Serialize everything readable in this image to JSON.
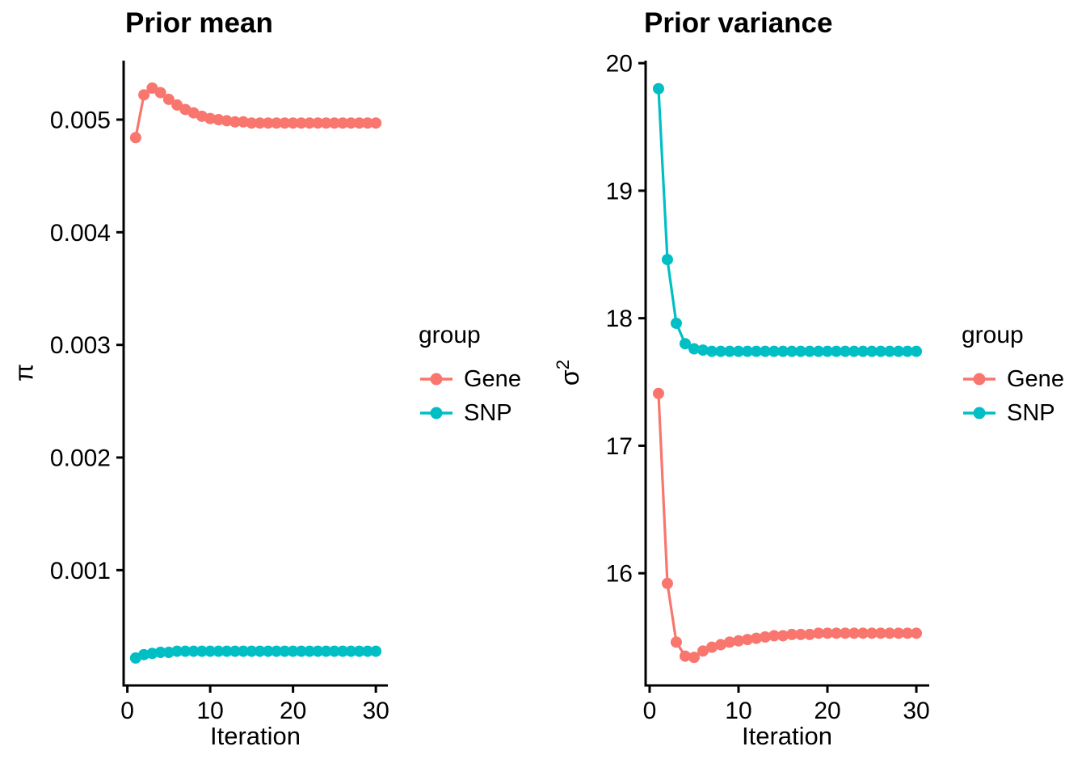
{
  "colors": {
    "gene": "#F8766D",
    "snp": "#00BFC4",
    "axis": "#000000",
    "text": "#000000",
    "background": "#FFFFFF"
  },
  "chart_data": [
    {
      "type": "line",
      "title": "Prior mean",
      "xlabel": "Iteration",
      "ylabel": "π",
      "grid": false,
      "x": [
        1,
        2,
        3,
        4,
        5,
        6,
        7,
        8,
        9,
        10,
        11,
        12,
        13,
        14,
        15,
        16,
        17,
        18,
        19,
        20,
        21,
        22,
        23,
        24,
        25,
        26,
        27,
        28,
        29,
        30
      ],
      "xticks": [
        0,
        10,
        20,
        30
      ],
      "xtick_labels": [
        "0",
        "10",
        "20",
        "30"
      ],
      "yticks": [
        0.001,
        0.002,
        0.003,
        0.004,
        0.005
      ],
      "ytick_labels": [
        "0.001",
        "0.002",
        "0.003",
        "0.004",
        "0.005"
      ],
      "xlim": [
        -0.45,
        31.45
      ],
      "ylim": [
        -2.4e-05,
        0.005524
      ],
      "legend": {
        "title": "group",
        "position": "right",
        "entries": [
          {
            "label": "Gene",
            "color": "#F8766D"
          },
          {
            "label": "SNP",
            "color": "#00BFC4"
          }
        ]
      },
      "series": [
        {
          "name": "Gene",
          "color": "#F8766D",
          "values": [
            0.00484,
            0.00522,
            0.00528,
            0.00524,
            0.00518,
            0.00513,
            0.00509,
            0.00506,
            0.00503,
            0.00501,
            0.005,
            0.00499,
            0.00498,
            0.00498,
            0.00497,
            0.00497,
            0.00497,
            0.00497,
            0.00497,
            0.00497,
            0.00497,
            0.00497,
            0.00497,
            0.00497,
            0.00497,
            0.00497,
            0.00497,
            0.00497,
            0.00497,
            0.00497
          ]
        },
        {
          "name": "SNP",
          "color": "#00BFC4",
          "values": [
            0.00022,
            0.00025,
            0.00026,
            0.00027,
            0.00027,
            0.00028,
            0.00028,
            0.00028,
            0.00028,
            0.00028,
            0.00028,
            0.00028,
            0.00028,
            0.00028,
            0.00028,
            0.00028,
            0.00028,
            0.00028,
            0.00028,
            0.00028,
            0.00028,
            0.00028,
            0.00028,
            0.00028,
            0.00028,
            0.00028,
            0.00028,
            0.00028,
            0.00028,
            0.00028
          ]
        }
      ]
    },
    {
      "type": "line",
      "title": "Prior variance",
      "xlabel": "Iteration",
      "ylabel": "σ²",
      "grid": false,
      "x": [
        1,
        2,
        3,
        4,
        5,
        6,
        7,
        8,
        9,
        10,
        11,
        12,
        13,
        14,
        15,
        16,
        17,
        18,
        19,
        20,
        21,
        22,
        23,
        24,
        25,
        26,
        27,
        28,
        29,
        30
      ],
      "xticks": [
        0,
        10,
        20,
        30
      ],
      "xtick_labels": [
        "0",
        "10",
        "20",
        "30"
      ],
      "yticks": [
        16,
        17,
        18,
        19,
        20
      ],
      "ytick_labels": [
        "16",
        "17",
        "18",
        "19",
        "20"
      ],
      "xlim": [
        -0.45,
        31.45
      ],
      "ylim": [
        15.12,
        20.02
      ],
      "legend": {
        "title": "group",
        "position": "right",
        "entries": [
          {
            "label": "Gene",
            "color": "#F8766D"
          },
          {
            "label": "SNP",
            "color": "#00BFC4"
          }
        ]
      },
      "series": [
        {
          "name": "Gene",
          "color": "#F8766D",
          "values": [
            17.41,
            15.92,
            15.46,
            15.35,
            15.34,
            15.39,
            15.42,
            15.44,
            15.46,
            15.47,
            15.48,
            15.49,
            15.5,
            15.51,
            15.51,
            15.52,
            15.52,
            15.52,
            15.53,
            15.53,
            15.53,
            15.53,
            15.53,
            15.53,
            15.53,
            15.53,
            15.53,
            15.53,
            15.53,
            15.53
          ]
        },
        {
          "name": "SNP",
          "color": "#00BFC4",
          "values": [
            19.8,
            18.46,
            17.96,
            17.8,
            17.76,
            17.75,
            17.74,
            17.74,
            17.74,
            17.74,
            17.74,
            17.74,
            17.74,
            17.74,
            17.74,
            17.74,
            17.74,
            17.74,
            17.74,
            17.74,
            17.74,
            17.74,
            17.74,
            17.74,
            17.74,
            17.74,
            17.74,
            17.74,
            17.74,
            17.74
          ]
        }
      ]
    }
  ]
}
